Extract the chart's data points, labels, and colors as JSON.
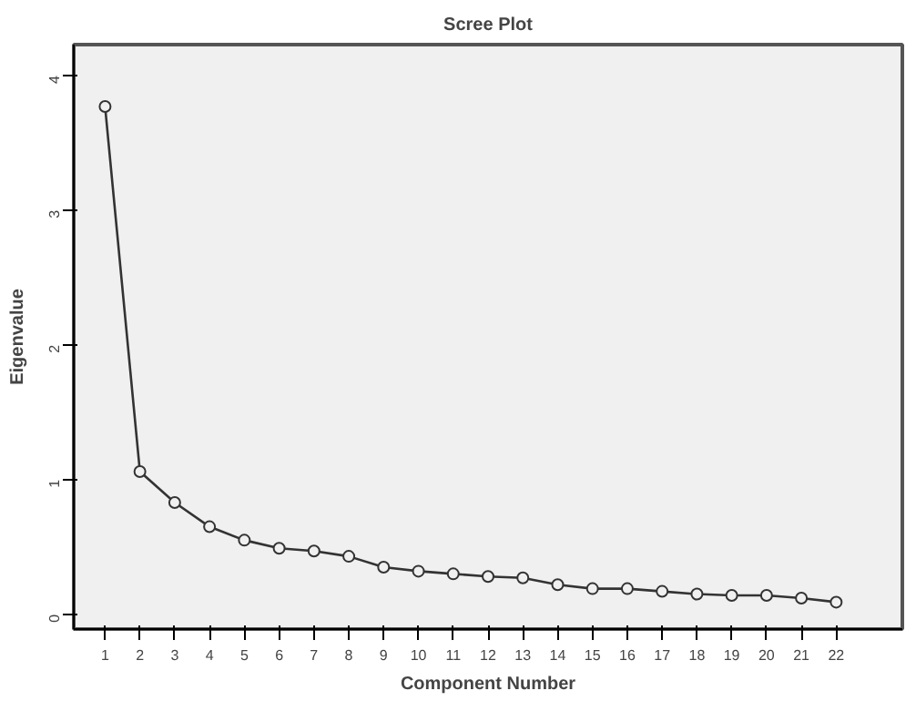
{
  "chart_data": {
    "type": "line",
    "title": "Scree Plot",
    "xlabel": "Component Number",
    "ylabel": "Eigenvalue",
    "x": [
      1,
      2,
      3,
      4,
      5,
      6,
      7,
      8,
      9,
      10,
      11,
      12,
      13,
      14,
      15,
      16,
      17,
      18,
      19,
      20,
      21,
      22
    ],
    "series": [
      {
        "color": "#333333",
        "values": [
          3.77,
          1.06,
          0.83,
          0.65,
          0.55,
          0.49,
          0.47,
          0.43,
          0.35,
          0.32,
          0.3,
          0.28,
          0.27,
          0.22,
          0.19,
          0.19,
          0.17,
          0.15,
          0.14,
          0.14,
          0.12,
          0.09
        ]
      }
    ],
    "xlim": [
      0.1,
      23.9
    ],
    "xticks": [
      1,
      2,
      3,
      4,
      5,
      6,
      7,
      8,
      9,
      10,
      11,
      12,
      13,
      14,
      15,
      16,
      17,
      18,
      19,
      20,
      21,
      22
    ],
    "ylim": [
      -0.11,
      4.23
    ],
    "yticks": [
      0,
      1,
      2,
      3,
      4
    ],
    "marker": "circle",
    "line_style": "solid",
    "grid": false
  }
}
